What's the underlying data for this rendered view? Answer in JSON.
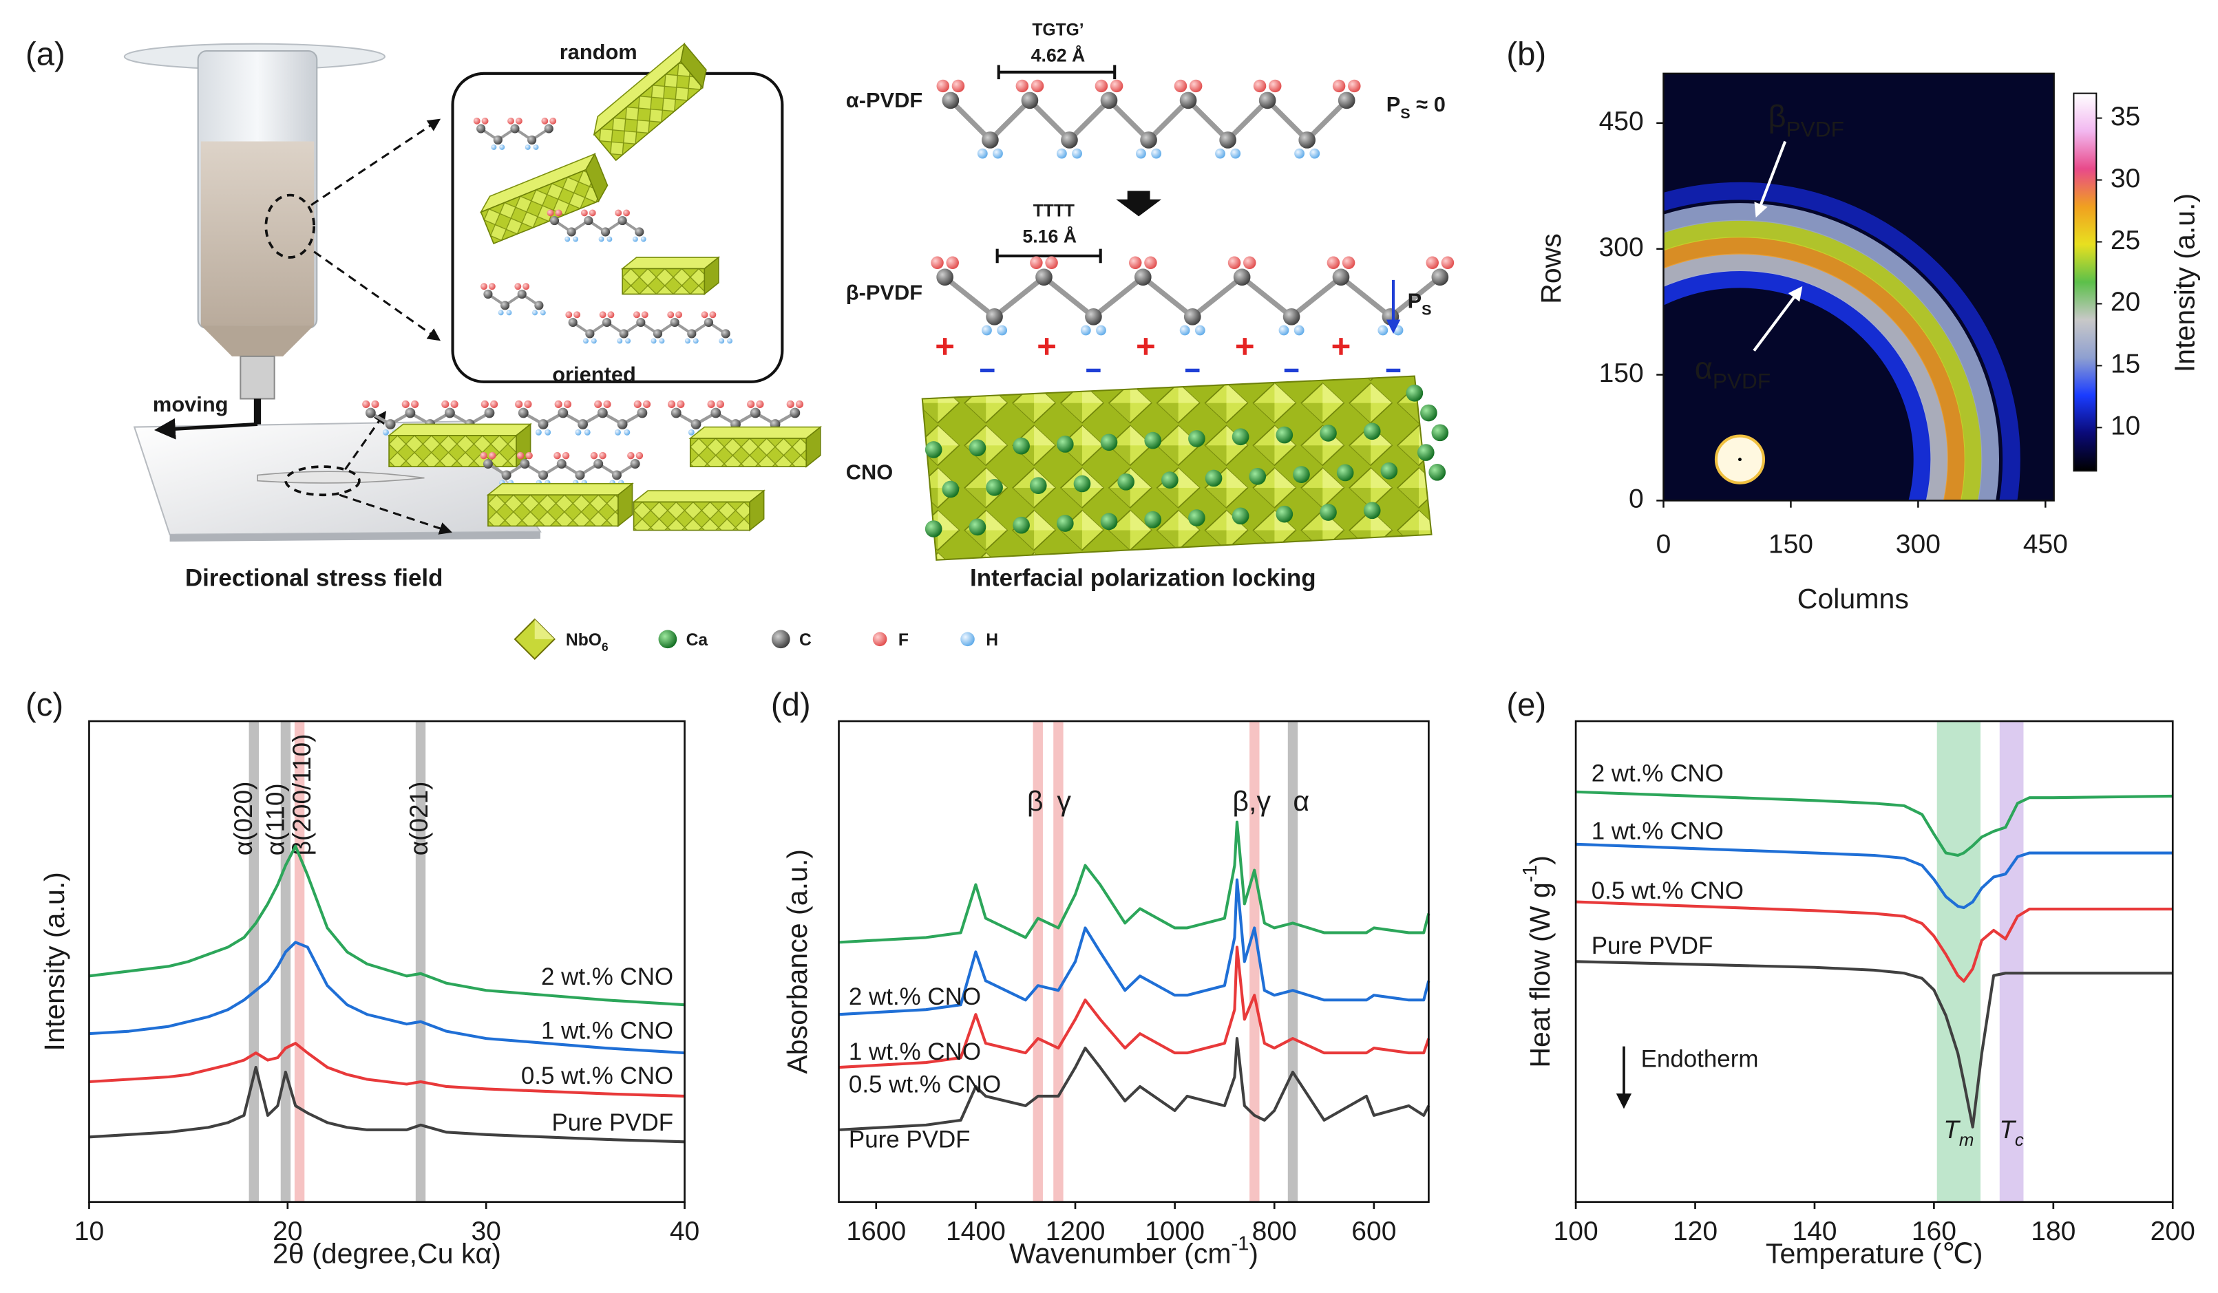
{
  "diagram": {
    "panel_label": "(a)",
    "random_label": "random",
    "oriented_label": "oriented",
    "moving_label": "moving",
    "stress_caption": "Directional stress field",
    "alpha": {
      "name": "α-PVDF",
      "conformation": "TGTG’",
      "length": "4.62 Å",
      "polarization": {
        "symbol": "P",
        "sub": "S",
        "rest": " ≈ 0"
      }
    },
    "beta": {
      "name": "β-PVDF",
      "conformation": "TTTT",
      "length": "5.16 Å",
      "polarization": {
        "symbol": "P",
        "sub": "S"
      }
    },
    "substrate": "CNO",
    "locking_caption": "Interfacial polarization locking",
    "legend": [
      {
        "symbol": "NbO",
        "sub": "6"
      },
      {
        "symbol": "Ca"
      },
      {
        "symbol": "C"
      },
      {
        "symbol": "F"
      },
      {
        "symbol": "H"
      }
    ]
  },
  "chart_data": [
    {
      "type": "heatmap",
      "panel_label": "(b)",
      "xlabel": "Columns",
      "ylabel": "Rows",
      "colorbar_label": "Intensity (a.u.)",
      "xlim": [
        0,
        460
      ],
      "ylim": [
        0,
        509
      ],
      "xticks": [
        0,
        150,
        300,
        450
      ],
      "yticks": [
        0,
        150,
        300,
        450
      ],
      "clim": [
        6.5,
        37
      ],
      "cticks": [
        10,
        15,
        20,
        25,
        30,
        35
      ],
      "colormap": [
        "#000000",
        "#0a0a78",
        "#1a3cff",
        "#8fa0d0",
        "#c8c8c8",
        "#5cc04a",
        "#e8e020",
        "#f0a020",
        "#e84a8a",
        "#f2b8f0",
        "#ffffff"
      ],
      "beam": {
        "x": 90,
        "y": 49,
        "radius": 28
      },
      "rings": [
        {
          "radius": 215,
          "intensity": 12
        },
        {
          "radius": 235,
          "intensity": 18
        },
        {
          "radius": 255,
          "intensity": 28
        },
        {
          "radius": 275,
          "intensity": 24
        },
        {
          "radius": 295,
          "intensity": 16
        },
        {
          "radius": 320,
          "intensity": 11
        }
      ],
      "annotations": [
        {
          "symbol": "β",
          "sub": "PVDF"
        },
        {
          "symbol": "α",
          "sub": "PVDF"
        }
      ]
    },
    {
      "type": "line",
      "panel_label": "(c)",
      "xlabel": "2θ (degree,Cu kα)",
      "ylabel": "Intensity (a.u.)",
      "xlim": [
        10,
        40
      ],
      "xticks": [
        10,
        20,
        30,
        40
      ],
      "ylim": [
        0,
        100
      ],
      "x": [
        10,
        12,
        14,
        15,
        16,
        17,
        17.8,
        18.4,
        19,
        19.5,
        19.9,
        20.4,
        21,
        22,
        23,
        24,
        26,
        26.7,
        28,
        30,
        33,
        36,
        40
      ],
      "series": [
        {
          "name": "Pure PVDF",
          "color": "#404040",
          "values": [
            13.5,
            14,
            14.5,
            15,
            15.5,
            16.5,
            18,
            28,
            18,
            20,
            27,
            20,
            18.5,
            16.5,
            15.5,
            15,
            15,
            16,
            14.5,
            14,
            13.5,
            13,
            12.5
          ]
        },
        {
          "name": "0.5 wt.% CNO",
          "color": "#e8393a",
          "values": [
            25,
            25.5,
            26,
            26.5,
            27.5,
            28.5,
            29.5,
            31,
            29.5,
            30,
            32,
            33,
            31,
            28,
            26.5,
            25.5,
            24.5,
            25,
            24,
            23.5,
            23,
            22.5,
            22
          ]
        },
        {
          "name": "1 wt.% CNO",
          "color": "#1f6fd6",
          "values": [
            35,
            35.5,
            36.5,
            37.5,
            38.5,
            40,
            42,
            44,
            46,
            49,
            52,
            54,
            53,
            45,
            41,
            39,
            37,
            37.5,
            35.5,
            34,
            33,
            32,
            31
          ]
        },
        {
          "name": "2 wt.% CNO",
          "color": "#2ca65a",
          "values": [
            47,
            48,
            49,
            50,
            51.5,
            53,
            55,
            58,
            62,
            66,
            70,
            74,
            68,
            57,
            52,
            49.5,
            47,
            47.5,
            45.5,
            44,
            43,
            42,
            41
          ]
        }
      ],
      "bands": [
        {
          "x": 18.3,
          "color": "#b4b4b4",
          "label": "α(020)",
          "label_color": "#1a1a1a"
        },
        {
          "x": 19.9,
          "color": "#b4b4b4",
          "label": "α(110)",
          "label_color": "#1a1a1a"
        },
        {
          "x": 20.6,
          "color": "#f4b8b8",
          "label": "β(200/110)",
          "label_color": "#e05050"
        },
        {
          "x": 26.7,
          "color": "#b4b4b4",
          "label": "α(021)",
          "label_color": "#1a1a1a"
        }
      ]
    },
    {
      "type": "line",
      "panel_label": "(d)",
      "xlabel": {
        "text": "Wavenumber (cm",
        "sup": "-1",
        "end": ")"
      },
      "ylabel": "Absorbance (a.u.)",
      "xlim": [
        1675,
        490
      ],
      "xticks": [
        1600,
        1400,
        1200,
        1000,
        800,
        600
      ],
      "ylim": [
        0,
        100
      ],
      "x": [
        1675,
        1500,
        1430,
        1400,
        1380,
        1300,
        1275,
        1234,
        1200,
        1180,
        1150,
        1100,
        1070,
        1000,
        975,
        900,
        880,
        875,
        860,
        840,
        820,
        800,
        763,
        700,
        615,
        600,
        530,
        500,
        490
      ],
      "series": [
        {
          "name": "Pure PVDF",
          "color": "#404040",
          "values": [
            15,
            16,
            17,
            24,
            22,
            20,
            22,
            22,
            28,
            32,
            28,
            21,
            24,
            19,
            22,
            20,
            26,
            34,
            20,
            18,
            17,
            19,
            27,
            17,
            22,
            18,
            20,
            18,
            20
          ]
        },
        {
          "name": "0.5 wt.% CNO",
          "color": "#e8393a",
          "values": [
            28,
            29,
            30,
            39,
            33,
            31,
            34,
            32,
            38,
            42,
            38,
            32,
            35,
            31,
            31,
            33,
            40,
            53,
            38,
            43,
            33,
            32,
            34,
            31,
            31,
            32,
            31,
            31,
            34
          ]
        },
        {
          "name": "1 wt.% CNO",
          "color": "#1f6fd6",
          "values": [
            39,
            40,
            41,
            52,
            46,
            42,
            45,
            44,
            50,
            57,
            52,
            44,
            47,
            43,
            43,
            45,
            55,
            67,
            50,
            57,
            44,
            43,
            44,
            42,
            42,
            43,
            42,
            42,
            46
          ]
        },
        {
          "name": "2 wt.% CNO",
          "color": "#2ca65a",
          "values": [
            54,
            55,
            56,
            66,
            59,
            55,
            59,
            57,
            64,
            70,
            66,
            58,
            61,
            57,
            57,
            59,
            70,
            79,
            62,
            69,
            58,
            57,
            58,
            56,
            56,
            57,
            56,
            56,
            60
          ]
        }
      ],
      "bands": [
        {
          "x": 1275,
          "color": "#f4b8b8",
          "label": "β",
          "label_color": "#e05050"
        },
        {
          "x": 1234,
          "color": "#f4b8b8",
          "label": "γ",
          "label_color": "#e05050"
        },
        {
          "x": 840,
          "color": "#f4b8b8",
          "label": "β,γ",
          "label_color": "#e05050"
        },
        {
          "x": 763,
          "color": "#b4b4b4",
          "label": "α",
          "label_color": "#1a1a1a"
        }
      ]
    },
    {
      "type": "line",
      "panel_label": "(e)",
      "xlabel": "Temperature (℃)",
      "ylabel": {
        "text": "Heat flow (W g",
        "sup": "-1",
        "end": ")"
      },
      "xlim": [
        100,
        200
      ],
      "xticks": [
        100,
        120,
        140,
        160,
        180,
        200
      ],
      "ylim": [
        0,
        100
      ],
      "x": [
        100,
        120,
        140,
        150,
        155,
        158,
        160,
        162,
        164,
        165,
        166.5,
        168,
        170,
        172,
        174,
        176,
        180,
        200
      ],
      "series": [
        {
          "name": "Pure PVDF",
          "color": "#404040",
          "values": [
            50,
            49.4,
            48.8,
            48.2,
            47.6,
            46.5,
            44.1,
            38.8,
            30.9,
            25,
            15.6,
            30.9,
            47.1,
            47.6,
            47.6,
            47.6,
            47.6,
            47.6
          ]
        },
        {
          "name": "0.5 wt.% CNO",
          "color": "#e8393a",
          "values": [
            62.4,
            61.5,
            60.6,
            60,
            59.4,
            57.9,
            55.3,
            51.5,
            47.1,
            45.9,
            48.5,
            54.4,
            56.5,
            54.7,
            59.4,
            60.9,
            60.9,
            60.9
          ]
        },
        {
          "name": "1 wt.% CNO",
          "color": "#1f6fd6",
          "values": [
            74.4,
            73.5,
            72.6,
            72.1,
            71.5,
            70,
            67.1,
            63.5,
            61.5,
            61.2,
            62.4,
            65.3,
            67.6,
            68.2,
            71.8,
            72.6,
            72.6,
            72.6
          ]
        },
        {
          "name": "2 wt.% CNO",
          "color": "#2ca65a",
          "values": [
            85.3,
            84.4,
            83.5,
            82.9,
            82.4,
            80.6,
            76.5,
            72.6,
            72.1,
            72.6,
            74.1,
            75.9,
            77.1,
            77.9,
            82.9,
            84.1,
            84.1,
            84.4
          ]
        }
      ],
      "regions": [
        {
          "x0": 160.5,
          "x1": 167.8,
          "color": "#bfe6cc",
          "label": {
            "symbol": "T",
            "sub": "m"
          }
        },
        {
          "x0": 171,
          "x1": 175,
          "color": "#dccbf0",
          "label": {
            "symbol": "T",
            "sub": "c"
          }
        }
      ],
      "annotation": "Endotherm"
    }
  ]
}
